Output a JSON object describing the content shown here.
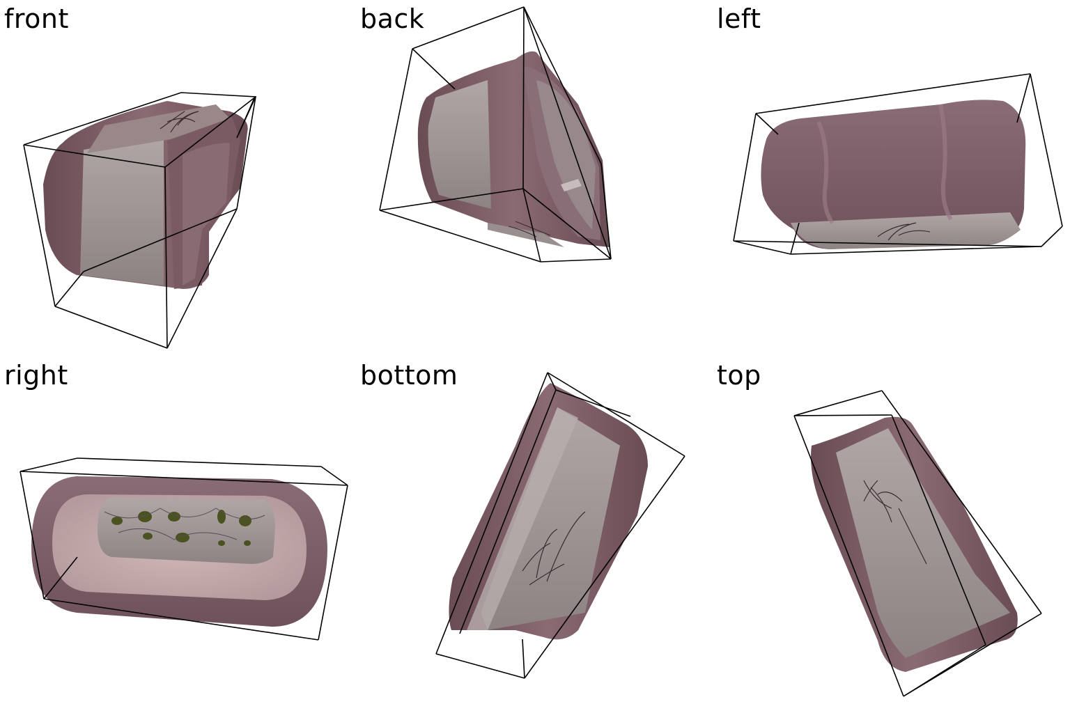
{
  "views": [
    {
      "id": "front",
      "label": "front"
    },
    {
      "id": "back",
      "label": "back"
    },
    {
      "id": "left",
      "label": "left"
    },
    {
      "id": "right",
      "label": "right"
    },
    {
      "id": "bottom",
      "label": "bottom"
    },
    {
      "id": "top",
      "label": "top"
    }
  ],
  "colors": {
    "rim": "#7f5e68",
    "rim_dark": "#64464f",
    "rim_light": "#9a7b84",
    "band": "#9e9393",
    "band_light": "#b3a9a8",
    "interior": "#c8aeaf",
    "interior_floor": "#a8a29f",
    "leaf": "#4a5220",
    "stroke": "#000000"
  }
}
